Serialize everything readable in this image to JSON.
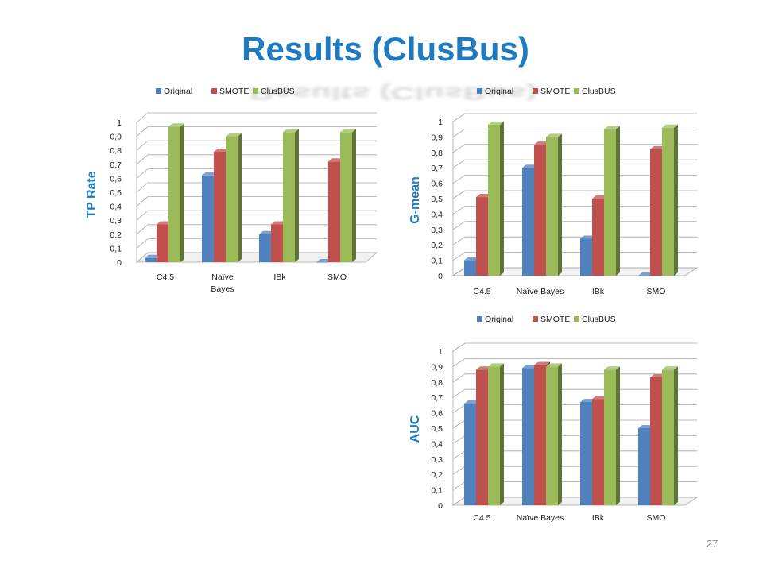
{
  "slide": {
    "title": "Results (ClusBus)",
    "page_number": "27"
  },
  "colors": {
    "original": "#4f81bd",
    "smote": "#c0504d",
    "clusbus": "#9bbb59",
    "ylabel": "#1f7bc1"
  },
  "chart_data": [
    {
      "type": "bar",
      "title": "",
      "ylabel": "TP Rate",
      "xlabel": "",
      "categories": [
        [
          "C4.5"
        ],
        [
          "Naïve",
          "Bayes"
        ],
        [
          "IBk"
        ],
        [
          "SMO"
        ]
      ],
      "ytick_labels": [
        "0",
        "0,1",
        "0,2",
        "0,3",
        "0,4",
        "0,5",
        "0,6",
        "0,7",
        "0,8",
        "0,9",
        "1"
      ],
      "ylim": [
        0,
        1
      ],
      "legend_position": "top",
      "grid": true,
      "series": [
        {
          "name": "Original",
          "values": [
            0.03,
            0.62,
            0.2,
            0.0
          ]
        },
        {
          "name": "SMOTE",
          "values": [
            0.27,
            0.79,
            0.27,
            0.72
          ]
        },
        {
          "name": "ClusBUS",
          "values": [
            0.97,
            0.9,
            0.93,
            0.93
          ]
        }
      ]
    },
    {
      "type": "bar",
      "title": "",
      "ylabel": "G-mean",
      "xlabel": "",
      "categories": [
        [
          "C4.5"
        ],
        [
          "Naïve Bayes"
        ],
        [
          "IBk"
        ],
        [
          "SMO"
        ]
      ],
      "ytick_labels": [
        "0",
        "0,1",
        "0,2",
        "0,3",
        "0,4",
        "0,5",
        "0,6",
        "0,7",
        "0,8",
        "0,9",
        "1"
      ],
      "ylim": [
        0,
        1
      ],
      "legend_position": "top",
      "grid": true,
      "series": [
        {
          "name": "Original",
          "values": [
            0.1,
            0.7,
            0.24,
            0.0
          ]
        },
        {
          "name": "SMOTE",
          "values": [
            0.51,
            0.85,
            0.5,
            0.82
          ]
        },
        {
          "name": "ClusBUS",
          "values": [
            0.98,
            0.9,
            0.95,
            0.96
          ]
        }
      ]
    },
    {
      "type": "bar",
      "title": "",
      "ylabel": "AUC",
      "xlabel": "",
      "categories": [
        [
          "C4.5"
        ],
        [
          "Naïve Bayes"
        ],
        [
          "IBk"
        ],
        [
          "SMO"
        ]
      ],
      "ytick_labels": [
        "0",
        "0,1",
        "0,2",
        "0,3",
        "0,4",
        "0,5",
        "0,6",
        "0,7",
        "0,8",
        "0,9",
        "1"
      ],
      "ylim": [
        0,
        1
      ],
      "legend_position": "top",
      "grid": true,
      "series": [
        {
          "name": "Original",
          "values": [
            0.66,
            0.89,
            0.67,
            0.5
          ]
        },
        {
          "name": "SMOTE",
          "values": [
            0.88,
            0.91,
            0.69,
            0.83
          ]
        },
        {
          "name": "ClusBUS",
          "values": [
            0.9,
            0.9,
            0.88,
            0.88
          ]
        }
      ]
    }
  ]
}
